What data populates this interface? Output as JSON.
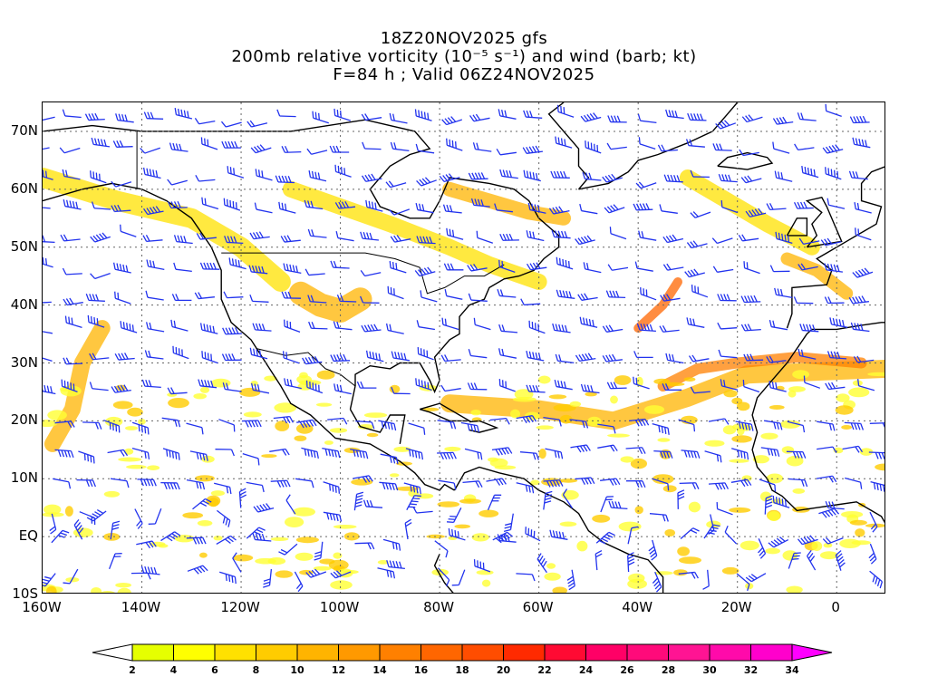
{
  "title": {
    "line1": "18Z20NOV2025 gfs",
    "line2": "200mb relative vorticity (10⁻⁵ s⁻¹) and wind (barb; kt)",
    "line3": "F=84 h ; Valid 06Z24NOV2025"
  },
  "map": {
    "extent_lon": [
      -160,
      10
    ],
    "extent_lat": [
      -10,
      75
    ],
    "lat_labels": [
      "70N",
      "60N",
      "50N",
      "40N",
      "30N",
      "20N",
      "10N",
      "EQ",
      "10S"
    ],
    "lat_values": [
      70,
      60,
      50,
      40,
      30,
      20,
      10,
      0,
      -10
    ],
    "lon_labels": [
      "160W",
      "140W",
      "120W",
      "100W",
      "80W",
      "60W",
      "40W",
      "20W",
      "0"
    ],
    "lon_values": [
      -160,
      -140,
      -120,
      -100,
      -80,
      -60,
      -40,
      -20,
      0
    ],
    "grid": "dotted",
    "barb_color": "#2233ee",
    "coast_color": "#000000"
  },
  "colorbar": {
    "levels": [
      "2",
      "4",
      "6",
      "8",
      "10",
      "12",
      "14",
      "16",
      "18",
      "20",
      "22",
      "24",
      "26",
      "28",
      "30",
      "32",
      "34"
    ],
    "colors": [
      "#e6ff00",
      "#ffff00",
      "#ffe100",
      "#ffcc00",
      "#ffb400",
      "#ff9900",
      "#ff8000",
      "#ff6600",
      "#ff4d00",
      "#ff2a00",
      "#ff0a33",
      "#ff0066",
      "#ff0a7a",
      "#ff1493",
      "#ff0aaa",
      "#ff00cc",
      "#ff00ff"
    ],
    "under_color": "#ffffff",
    "over_color": "#ff00ff"
  }
}
